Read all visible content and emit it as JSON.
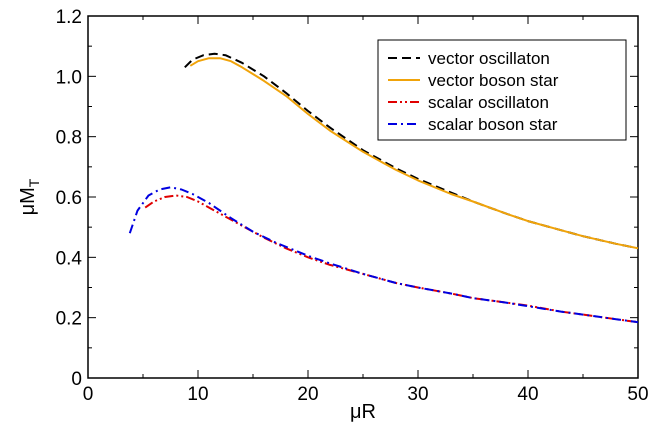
{
  "chart_data": {
    "type": "line",
    "title": "",
    "xlabel": "μR",
    "ylabel_main": "μM",
    "ylabel_sub": "T",
    "xlim": [
      0,
      50
    ],
    "ylim": [
      0,
      1.2
    ],
    "xticks": [
      0,
      10,
      20,
      30,
      40,
      50
    ],
    "yticks": [
      0,
      0.2,
      0.4,
      0.6,
      0.8,
      1.0,
      1.2
    ],
    "xtick_labels": [
      "0",
      "10",
      "20",
      "30",
      "40",
      "50"
    ],
    "ytick_labels": [
      "0",
      "0.2",
      "0.4",
      "0.6",
      "0.8",
      "1.0",
      "1.2"
    ],
    "grid": false,
    "legend_position": "top-right",
    "series": [
      {
        "name": "vector oscillaton",
        "color": "#000000",
        "dash": "dashed",
        "x": [
          8.8,
          9.5,
          10.5,
          11.5,
          12.5,
          14,
          16,
          18,
          20,
          22,
          25,
          28,
          30,
          33,
          35,
          38,
          40,
          43,
          45,
          48,
          50
        ],
        "y": [
          1.03,
          1.055,
          1.07,
          1.075,
          1.07,
          1.045,
          1.0,
          0.945,
          0.885,
          0.83,
          0.755,
          0.695,
          0.66,
          0.615,
          0.585,
          0.545,
          0.52,
          0.49,
          0.47,
          0.445,
          0.43
        ]
      },
      {
        "name": "vector boson star",
        "color": "#f0a30a",
        "dash": "solid",
        "x": [
          9.3,
          10,
          11,
          12,
          13,
          14,
          16,
          18,
          20,
          22,
          25,
          28,
          30,
          33,
          35,
          38,
          40,
          43,
          45,
          48,
          50
        ],
        "y": [
          1.035,
          1.05,
          1.06,
          1.06,
          1.05,
          1.03,
          0.985,
          0.935,
          0.875,
          0.82,
          0.75,
          0.69,
          0.655,
          0.61,
          0.585,
          0.545,
          0.52,
          0.49,
          0.47,
          0.445,
          0.43
        ]
      },
      {
        "name": "scalar oscillaton",
        "color": "#e00000",
        "dash": "dashdotdot",
        "x": [
          5.2,
          6,
          7,
          8,
          9,
          10,
          12,
          14,
          16,
          18,
          20,
          22,
          25,
          28,
          30,
          33,
          35,
          38,
          40,
          43,
          45,
          48,
          50
        ],
        "y": [
          0.565,
          0.585,
          0.6,
          0.605,
          0.6,
          0.585,
          0.545,
          0.505,
          0.465,
          0.43,
          0.4,
          0.375,
          0.345,
          0.315,
          0.3,
          0.28,
          0.265,
          0.25,
          0.24,
          0.22,
          0.21,
          0.195,
          0.185
        ]
      },
      {
        "name": "scalar boson star",
        "color": "#0000e0",
        "dash": "dashdot",
        "x": [
          3.8,
          4.5,
          5.5,
          6.5,
          7.5,
          8.5,
          9.5,
          11,
          13,
          15,
          17,
          20,
          22,
          25,
          28,
          30,
          33,
          35,
          38,
          40,
          43,
          45,
          48,
          50
        ],
        "y": [
          0.48,
          0.555,
          0.605,
          0.625,
          0.632,
          0.625,
          0.61,
          0.58,
          0.53,
          0.485,
          0.45,
          0.405,
          0.38,
          0.345,
          0.315,
          0.3,
          0.28,
          0.265,
          0.25,
          0.238,
          0.22,
          0.21,
          0.195,
          0.185
        ]
      }
    ]
  }
}
